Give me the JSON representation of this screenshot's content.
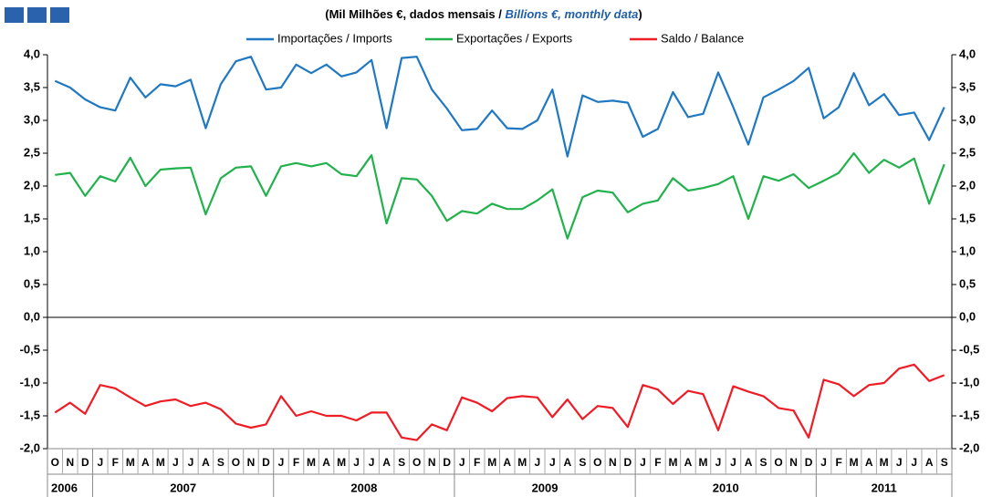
{
  "chart_data": {
    "type": "line",
    "title": {
      "prefix": "(Mil Milhões €, dados mensais /",
      "english": "Billions €, monthly data",
      "suffix": ")"
    },
    "year_groups": [
      {
        "label": "2006",
        "months": [
          "O",
          "N",
          "D"
        ]
      },
      {
        "label": "2007",
        "months": [
          "J",
          "F",
          "M",
          "A",
          "M",
          "J",
          "J",
          "A",
          "S",
          "O",
          "N",
          "D"
        ]
      },
      {
        "label": "2008",
        "months": [
          "J",
          "F",
          "M",
          "A",
          "M",
          "J",
          "J",
          "A",
          "S",
          "O",
          "N",
          "D"
        ]
      },
      {
        "label": "2009",
        "months": [
          "J",
          "F",
          "M",
          "A",
          "M",
          "J",
          "J",
          "A",
          "S",
          "O",
          "N",
          "D"
        ]
      },
      {
        "label": "2010",
        "months": [
          "J",
          "F",
          "M",
          "A",
          "M",
          "J",
          "J",
          "A",
          "S",
          "O",
          "N",
          "D"
        ]
      },
      {
        "label": "2011",
        "months": [
          "J",
          "F",
          "M",
          "A",
          "M",
          "J",
          "J",
          "A",
          "S"
        ]
      }
    ],
    "series": [
      {
        "name": "Importações / Imports",
        "color": "#1f78c1",
        "values": [
          3.6,
          3.5,
          3.32,
          3.2,
          3.15,
          3.65,
          3.35,
          3.55,
          3.52,
          3.62,
          2.88,
          3.55,
          3.9,
          3.97,
          3.47,
          3.5,
          3.85,
          3.72,
          3.85,
          3.67,
          3.73,
          3.92,
          2.88,
          3.95,
          3.97,
          3.47,
          3.18,
          2.85,
          2.87,
          3.15,
          2.88,
          2.87,
          3.0,
          3.47,
          2.45,
          3.38,
          3.28,
          3.3,
          3.27,
          2.75,
          2.87,
          3.43,
          3.05,
          3.1,
          3.73,
          3.2,
          2.63,
          3.35,
          3.47,
          3.6,
          3.8,
          3.03,
          3.2,
          3.72,
          3.23,
          3.4,
          3.08,
          3.12,
          2.7,
          3.2
        ]
      },
      {
        "name": "Exportações / Exports",
        "color": "#22b14c",
        "values": [
          2.17,
          2.2,
          1.85,
          2.15,
          2.07,
          2.43,
          2.0,
          2.25,
          2.27,
          2.28,
          1.57,
          2.12,
          2.28,
          2.3,
          1.85,
          2.3,
          2.35,
          2.3,
          2.35,
          2.18,
          2.15,
          2.47,
          1.43,
          2.12,
          2.1,
          1.85,
          1.47,
          1.62,
          1.58,
          1.73,
          1.65,
          1.65,
          1.78,
          1.95,
          1.2,
          1.83,
          1.93,
          1.9,
          1.6,
          1.73,
          1.78,
          2.12,
          1.93,
          1.97,
          2.03,
          2.15,
          1.5,
          2.15,
          2.08,
          2.18,
          1.97,
          2.08,
          2.2,
          2.5,
          2.2,
          2.4,
          2.28,
          2.42,
          1.73,
          2.33
        ]
      },
      {
        "name": "Saldo / Balance",
        "color": "#ee1c25",
        "values": [
          -1.45,
          -1.3,
          -1.47,
          -1.03,
          -1.08,
          -1.22,
          -1.35,
          -1.28,
          -1.25,
          -1.35,
          -1.3,
          -1.4,
          -1.62,
          -1.68,
          -1.63,
          -1.2,
          -1.5,
          -1.43,
          -1.5,
          -1.5,
          -1.57,
          -1.45,
          -1.45,
          -1.83,
          -1.87,
          -1.63,
          -1.72,
          -1.22,
          -1.3,
          -1.43,
          -1.23,
          -1.2,
          -1.22,
          -1.52,
          -1.25,
          -1.55,
          -1.35,
          -1.38,
          -1.67,
          -1.03,
          -1.1,
          -1.32,
          -1.12,
          -1.17,
          -1.72,
          -1.05,
          -1.13,
          -1.2,
          -1.38,
          -1.42,
          -1.83,
          -0.95,
          -1.02,
          -1.2,
          -1.03,
          -1.0,
          -0.78,
          -0.72,
          -0.97,
          -0.88
        ]
      }
    ],
    "ylim": [
      -2,
      4
    ],
    "yticks": [
      {
        "value": 4,
        "label": "4,0"
      },
      {
        "value": 3.5,
        "label": "3,5"
      },
      {
        "value": 3,
        "label": "3,0"
      },
      {
        "value": 2.5,
        "label": "2,5"
      },
      {
        "value": 2,
        "label": "2,0"
      },
      {
        "value": 1.5,
        "label": "1,5"
      },
      {
        "value": 1,
        "label": "1,0"
      },
      {
        "value": 0.5,
        "label": "0,5"
      },
      {
        "value": 0,
        "label": "0,0"
      },
      {
        "value": -0.5,
        "label": "-0,5"
      },
      {
        "value": -1,
        "label": "-1,0"
      },
      {
        "value": -1.5,
        "label": "-1,5"
      },
      {
        "value": -2,
        "label": "-2,0"
      }
    ],
    "grid": false
  }
}
